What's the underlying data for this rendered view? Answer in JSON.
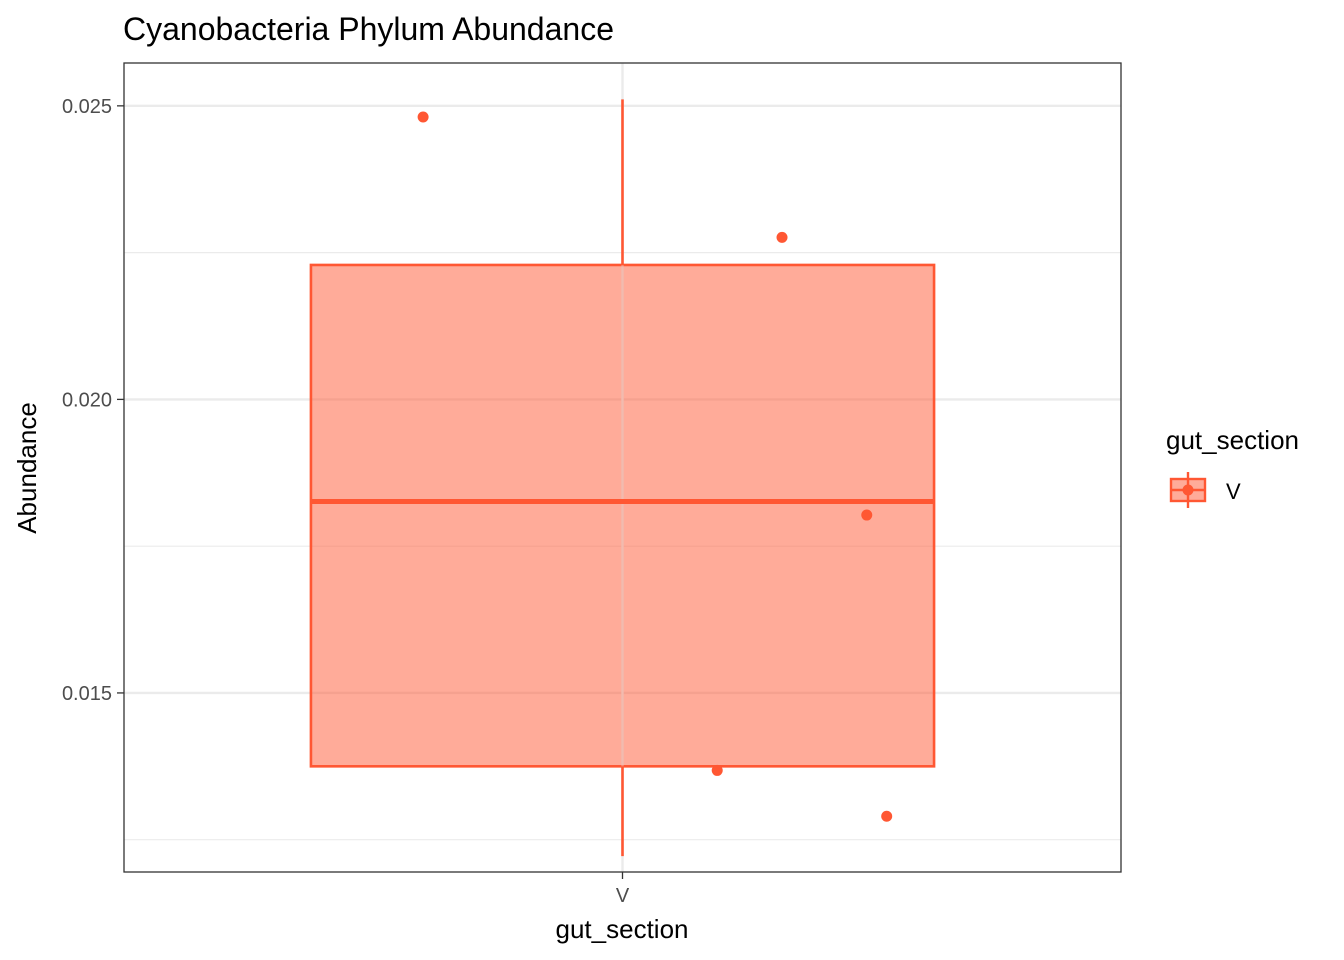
{
  "chart_data": {
    "type": "boxplot",
    "title": "Cyanobacteria Phylum Abundance",
    "xlabel": "gut_section",
    "ylabel": "Abundance",
    "categories": [
      "V"
    ],
    "ylim": [
      0.01195,
      0.02573
    ],
    "y_ticks": [
      0.015,
      0.02,
      0.025
    ],
    "y_tick_labels": [
      "0.015",
      "0.020",
      "0.025"
    ],
    "y_minor_ticks": [
      0.0125,
      0.0175,
      0.0225
    ],
    "grid": true,
    "box": {
      "category": "V",
      "min": 0.01222,
      "q1": 0.01375,
      "median": 0.01826,
      "q3": 0.02229,
      "max": 0.02511
    },
    "points": [
      {
        "x_jitter": -0.4,
        "y": 0.02481
      },
      {
        "x_jitter": 0.32,
        "y": 0.02276
      },
      {
        "x_jitter": 0.49,
        "y": 0.01803
      },
      {
        "x_jitter": 0.19,
        "y": 0.01368
      },
      {
        "x_jitter": 0.53,
        "y": 0.0129
      }
    ],
    "legend": {
      "title": "gut_section",
      "entries": [
        "V"
      ],
      "placement": "right"
    },
    "colors": {
      "series": "#FF5733",
      "box_fill": "#FFA898",
      "grid": "#EBEBEB",
      "panel_border": "#333333"
    }
  }
}
